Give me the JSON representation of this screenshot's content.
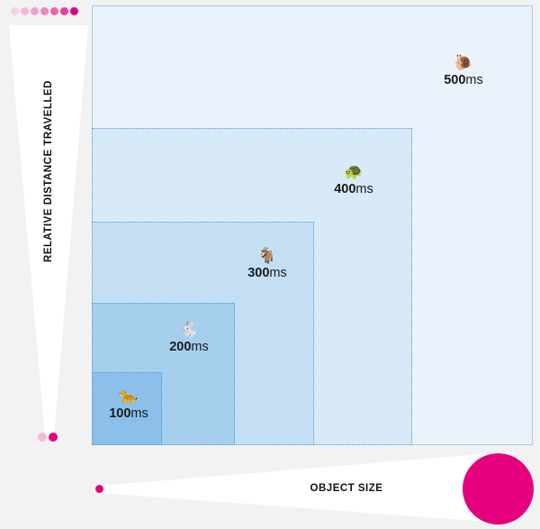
{
  "axes": {
    "y_label": "RELATIVE DISTANCE TRAVELLED",
    "x_label": "OBJECT SIZE"
  },
  "tiers": [
    {
      "animal": "cat",
      "emoji": "🐆",
      "value": "100",
      "unit": "ms"
    },
    {
      "animal": "rabbit",
      "emoji": "🐇",
      "value": "200",
      "unit": "ms"
    },
    {
      "animal": "goat",
      "emoji": "🐐",
      "value": "300",
      "unit": "ms"
    },
    {
      "animal": "turtle",
      "emoji": "🐢",
      "value": "400",
      "unit": "ms"
    },
    {
      "animal": "snail",
      "emoji": "🐌",
      "value": "500",
      "unit": "ms"
    }
  ],
  "colors": {
    "accent": "#e6007e",
    "dots_top": [
      "#f7cfe6",
      "#f3b9da",
      "#f0a0cd",
      "#ec85bf",
      "#e866b0",
      "#e6409e",
      "#e6007e"
    ],
    "origin_dots": [
      "#f3b9da",
      "#e6007e"
    ],
    "beam": "#ffffff",
    "box_outer": "#eaf3fc",
    "box_border": "#4c9bd3"
  }
}
